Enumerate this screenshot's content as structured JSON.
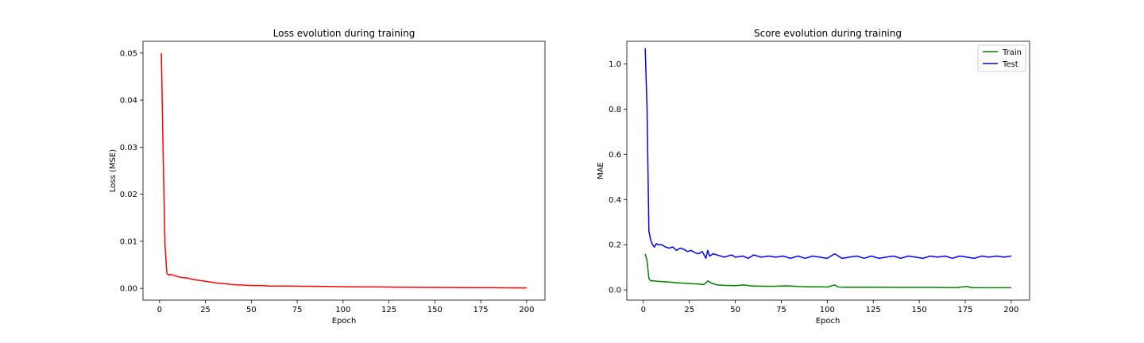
{
  "chart_data": [
    {
      "type": "line",
      "title": "Loss evolution during training",
      "xlabel": "Epoch",
      "ylabel": "Loss (MSE)",
      "xlim": [
        -9,
        210
      ],
      "ylim": [
        -0.0025,
        0.0525
      ],
      "xticks": [
        0,
        25,
        50,
        75,
        100,
        125,
        150,
        175,
        200
      ],
      "yticks": [
        0.0,
        0.01,
        0.02,
        0.03,
        0.04,
        0.05
      ],
      "ytick_labels": [
        "0.00",
        "0.01",
        "0.02",
        "0.03",
        "0.04",
        "0.05"
      ],
      "grid": false,
      "legend": null,
      "series": [
        {
          "color": "#ff0000",
          "points": [
            [
              1,
              0.05
            ],
            [
              2,
              0.028
            ],
            [
              3,
              0.009
            ],
            [
              4,
              0.0032
            ],
            [
              5,
              0.0028
            ],
            [
              6,
              0.003
            ],
            [
              8,
              0.0027
            ],
            [
              10,
              0.0025
            ],
            [
              12,
              0.0023
            ],
            [
              15,
              0.0022
            ],
            [
              18,
              0.0019
            ],
            [
              20,
              0.0018
            ],
            [
              25,
              0.0015
            ],
            [
              30,
              0.0012
            ],
            [
              35,
              0.001
            ],
            [
              40,
              0.0008
            ],
            [
              45,
              0.0007
            ],
            [
              50,
              0.0006
            ],
            [
              55,
              0.0006
            ],
            [
              60,
              0.0005
            ],
            [
              70,
              0.0005
            ],
            [
              80,
              0.00045
            ],
            [
              90,
              0.0004
            ],
            [
              100,
              0.00035
            ],
            [
              110,
              0.0003
            ],
            [
              120,
              0.0003
            ],
            [
              130,
              0.00025
            ],
            [
              140,
              0.00022
            ],
            [
              150,
              0.0002
            ],
            [
              160,
              0.00018
            ],
            [
              170,
              0.00015
            ],
            [
              180,
              0.00015
            ],
            [
              190,
              0.00012
            ],
            [
              200,
              0.0001
            ]
          ]
        }
      ]
    },
    {
      "type": "line",
      "title": "Score evolution during training",
      "xlabel": "Epoch",
      "ylabel": "MAE",
      "xlim": [
        -9,
        210
      ],
      "ylim": [
        -0.045,
        1.1
      ],
      "xticks": [
        0,
        25,
        50,
        75,
        100,
        125,
        150,
        175,
        200
      ],
      "yticks": [
        0.0,
        0.2,
        0.4,
        0.6,
        0.8,
        1.0
      ],
      "ytick_labels": [
        "0.0",
        "0.2",
        "0.4",
        "0.6",
        "0.8",
        "1.0"
      ],
      "grid": false,
      "legend": "top-right",
      "series": [
        {
          "name": "Train",
          "color": "#008000",
          "points": [
            [
              1,
              0.16
            ],
            [
              2,
              0.13
            ],
            [
              3,
              0.05
            ],
            [
              4,
              0.04
            ],
            [
              6,
              0.04
            ],
            [
              8,
              0.038
            ],
            [
              10,
              0.037
            ],
            [
              14,
              0.035
            ],
            [
              18,
              0.032
            ],
            [
              22,
              0.03
            ],
            [
              26,
              0.028
            ],
            [
              30,
              0.026
            ],
            [
              33,
              0.024
            ],
            [
              35,
              0.04
            ],
            [
              37,
              0.03
            ],
            [
              40,
              0.022
            ],
            [
              45,
              0.02
            ],
            [
              50,
              0.019
            ],
            [
              55,
              0.022
            ],
            [
              58,
              0.018
            ],
            [
              62,
              0.017
            ],
            [
              70,
              0.016
            ],
            [
              78,
              0.018
            ],
            [
              85,
              0.015
            ],
            [
              90,
              0.014
            ],
            [
              95,
              0.014
            ],
            [
              100,
              0.013
            ],
            [
              104,
              0.022
            ],
            [
              106,
              0.013
            ],
            [
              110,
              0.012
            ],
            [
              120,
              0.012
            ],
            [
              130,
              0.012
            ],
            [
              140,
              0.011
            ],
            [
              150,
              0.011
            ],
            [
              160,
              0.011
            ],
            [
              170,
              0.01
            ],
            [
              176,
              0.016
            ],
            [
              178,
              0.01
            ],
            [
              185,
              0.01
            ],
            [
              190,
              0.01
            ],
            [
              195,
              0.01
            ],
            [
              200,
              0.01
            ]
          ]
        },
        {
          "name": "Test",
          "color": "#0000ff",
          "points": [
            [
              1,
              1.07
            ],
            [
              2,
              0.8
            ],
            [
              3,
              0.26
            ],
            [
              4,
              0.22
            ],
            [
              5,
              0.2
            ],
            [
              6,
              0.19
            ],
            [
              7,
              0.205
            ],
            [
              8,
              0.2
            ],
            [
              10,
              0.2
            ],
            [
              12,
              0.19
            ],
            [
              14,
              0.185
            ],
            [
              16,
              0.19
            ],
            [
              18,
              0.175
            ],
            [
              20,
              0.185
            ],
            [
              22,
              0.18
            ],
            [
              24,
              0.17
            ],
            [
              26,
              0.175
            ],
            [
              28,
              0.165
            ],
            [
              30,
              0.16
            ],
            [
              32,
              0.17
            ],
            [
              34,
              0.14
            ],
            [
              35,
              0.175
            ],
            [
              36,
              0.15
            ],
            [
              38,
              0.16
            ],
            [
              40,
              0.155
            ],
            [
              44,
              0.145
            ],
            [
              48,
              0.155
            ],
            [
              50,
              0.145
            ],
            [
              54,
              0.15
            ],
            [
              57,
              0.14
            ],
            [
              60,
              0.155
            ],
            [
              64,
              0.145
            ],
            [
              68,
              0.15
            ],
            [
              72,
              0.145
            ],
            [
              76,
              0.15
            ],
            [
              80,
              0.14
            ],
            [
              84,
              0.15
            ],
            [
              88,
              0.14
            ],
            [
              92,
              0.15
            ],
            [
              96,
              0.145
            ],
            [
              100,
              0.14
            ],
            [
              104,
              0.16
            ],
            [
              108,
              0.14
            ],
            [
              112,
              0.145
            ],
            [
              116,
              0.15
            ],
            [
              120,
              0.14
            ],
            [
              124,
              0.15
            ],
            [
              128,
              0.14
            ],
            [
              132,
              0.145
            ],
            [
              136,
              0.15
            ],
            [
              140,
              0.14
            ],
            [
              144,
              0.15
            ],
            [
              148,
              0.145
            ],
            [
              152,
              0.14
            ],
            [
              156,
              0.15
            ],
            [
              160,
              0.145
            ],
            [
              164,
              0.15
            ],
            [
              168,
              0.14
            ],
            [
              172,
              0.15
            ],
            [
              176,
              0.145
            ],
            [
              180,
              0.14
            ],
            [
              184,
              0.15
            ],
            [
              188,
              0.145
            ],
            [
              192,
              0.15
            ],
            [
              196,
              0.145
            ],
            [
              200,
              0.15
            ]
          ]
        }
      ]
    }
  ]
}
